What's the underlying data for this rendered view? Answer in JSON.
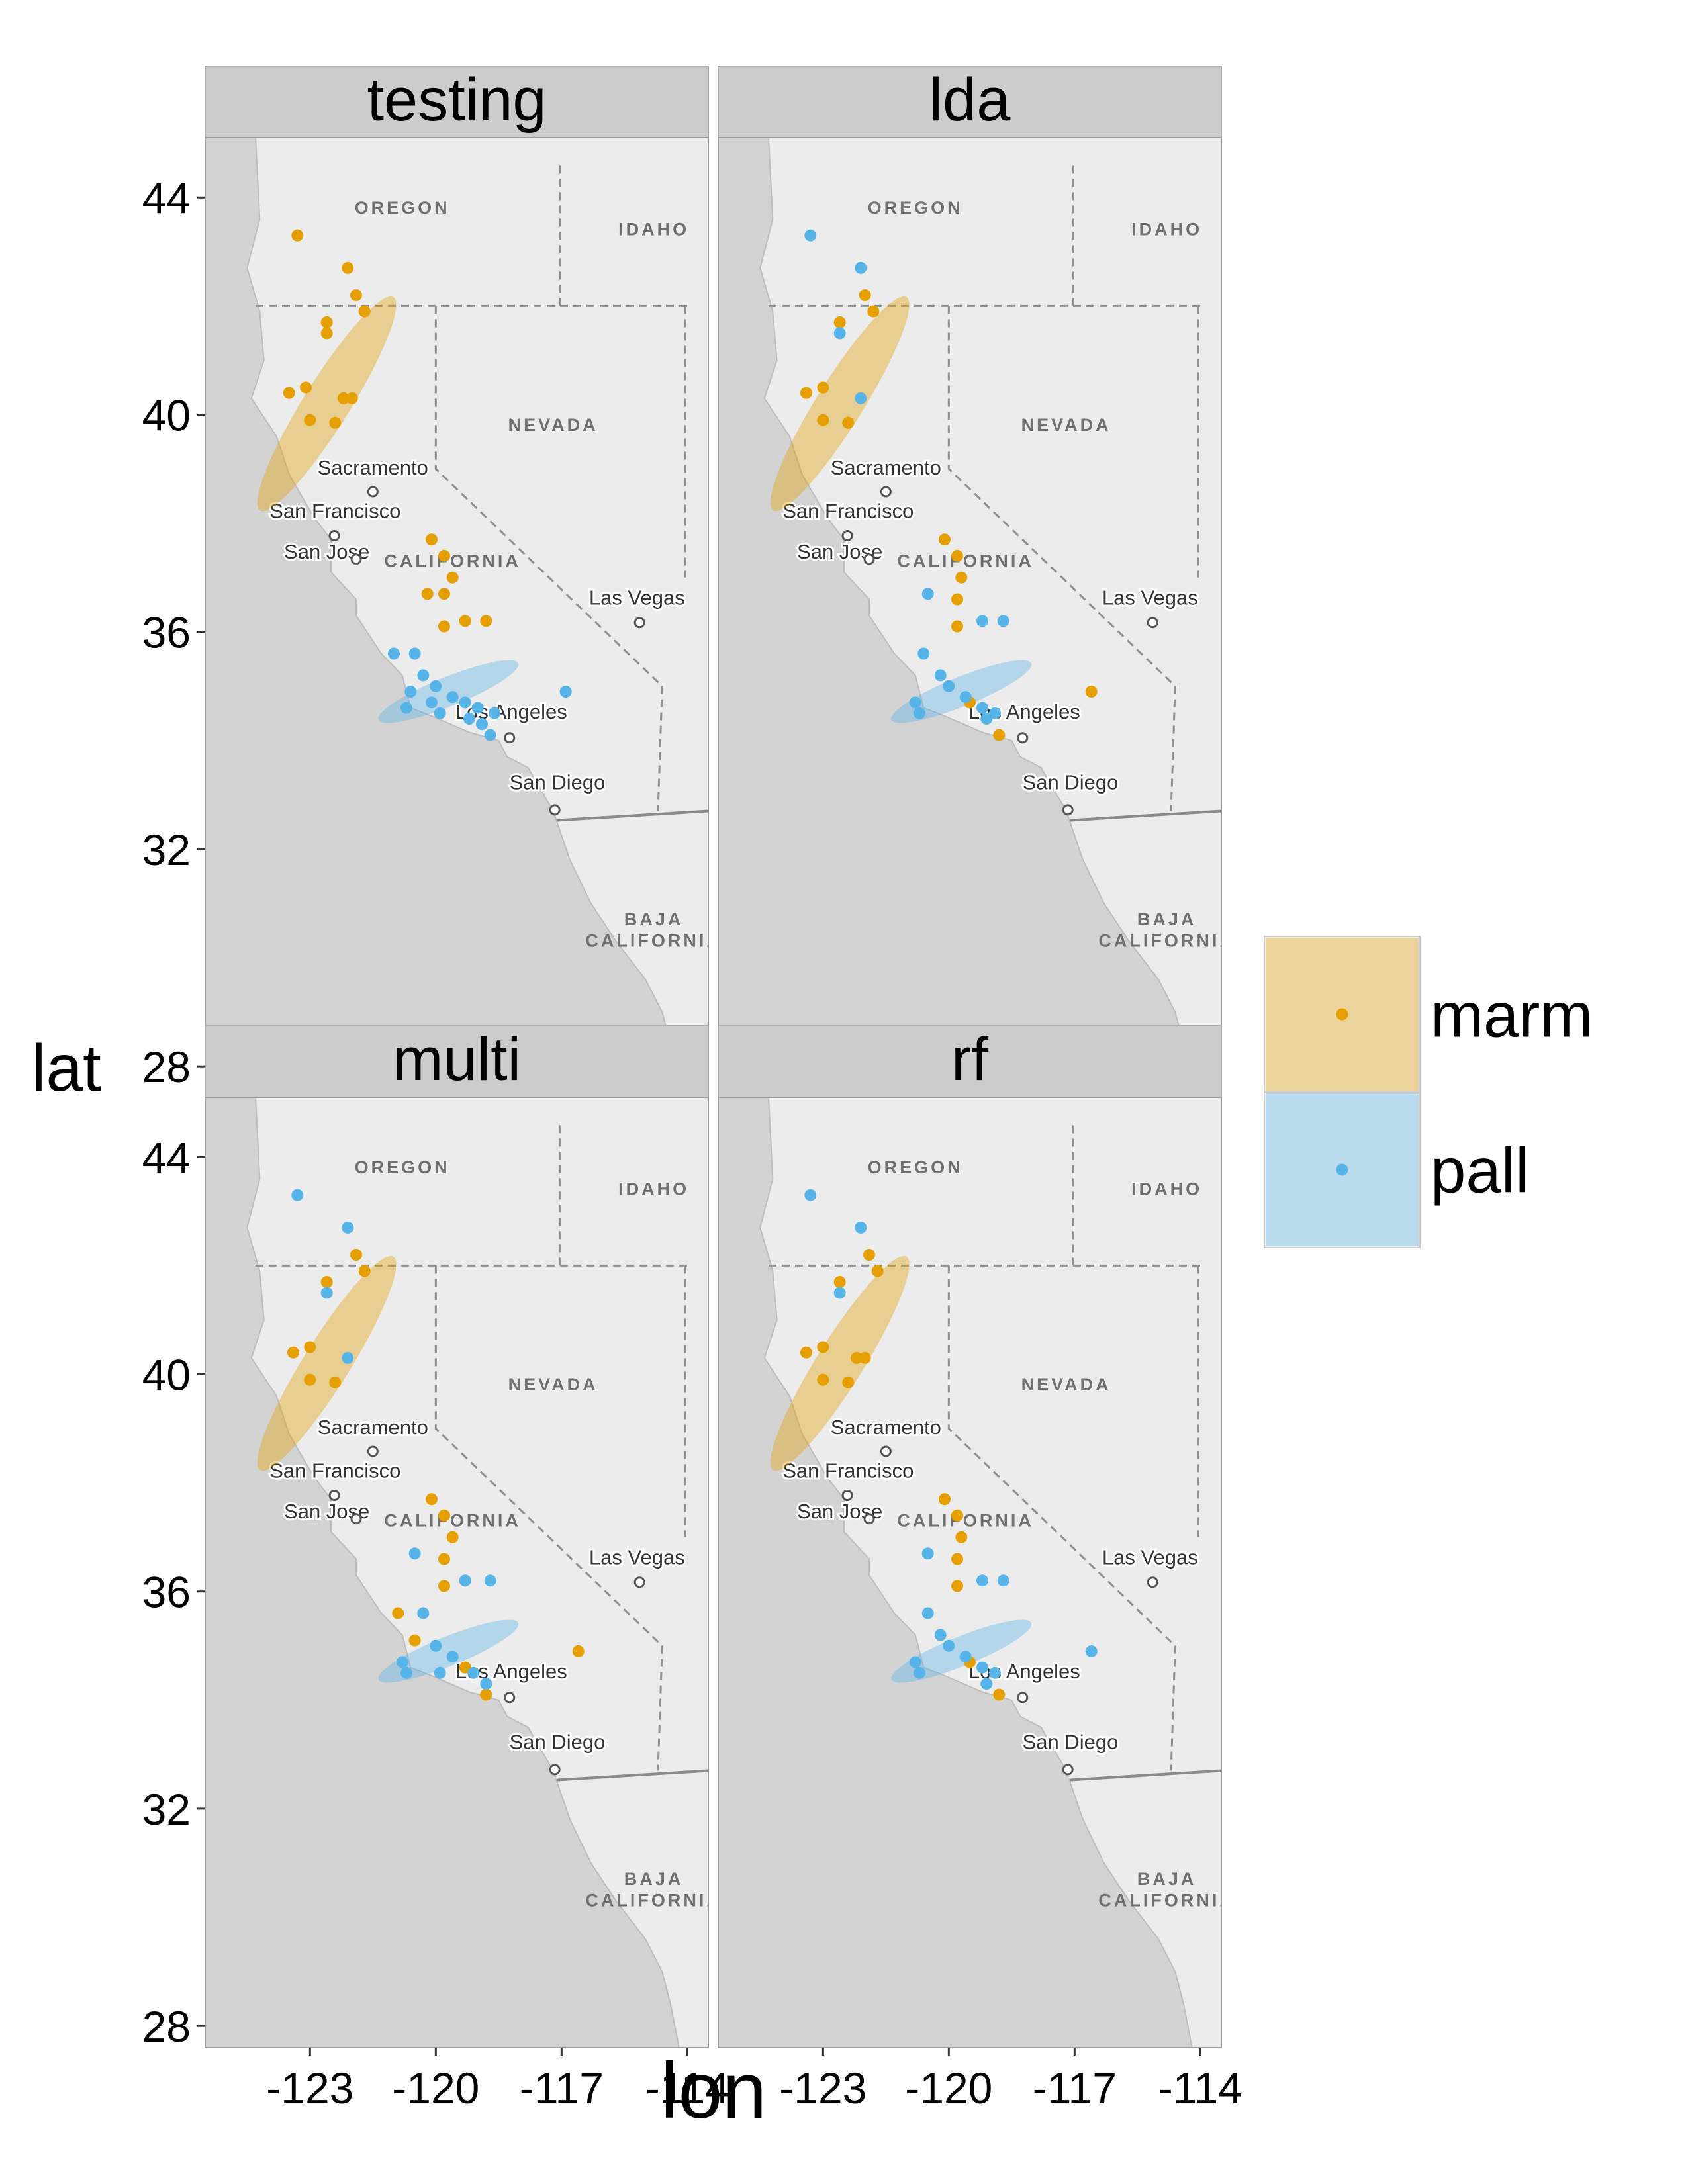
{
  "chart_data": {
    "type": "scatter",
    "panels": [
      {
        "title": "testing",
        "series": [
          {
            "name": "marm",
            "points": [
              [
                -123.3,
                43.3
              ],
              [
                -122.1,
                42.7
              ],
              [
                -121.9,
                42.2
              ],
              [
                -121.7,
                41.9
              ],
              [
                -122.6,
                41.7
              ],
              [
                -122.6,
                41.5
              ],
              [
                -123.5,
                40.4
              ],
              [
                -123.1,
                40.5
              ],
              [
                -122.2,
                40.3
              ],
              [
                -122.0,
                40.3
              ],
              [
                -123.0,
                39.9
              ],
              [
                -122.4,
                39.85
              ],
              [
                -120.1,
                37.7
              ],
              [
                -119.8,
                37.4
              ],
              [
                -119.6,
                37.0
              ],
              [
                -120.2,
                36.7
              ],
              [
                -119.8,
                36.7
              ],
              [
                -119.3,
                36.2
              ],
              [
                -118.8,
                36.2
              ],
              [
                -119.8,
                36.1
              ]
            ]
          },
          {
            "name": "pall",
            "points": [
              [
                -121.0,
                35.6
              ],
              [
                -120.5,
                35.6
              ],
              [
                -120.3,
                35.2
              ],
              [
                -120.0,
                35.0
              ],
              [
                -119.6,
                34.8
              ],
              [
                -119.3,
                34.7
              ],
              [
                -119.0,
                34.6
              ],
              [
                -118.6,
                34.5
              ],
              [
                -120.1,
                34.7
              ],
              [
                -120.6,
                34.9
              ],
              [
                -120.7,
                34.6
              ],
              [
                -119.9,
                34.5
              ],
              [
                -119.2,
                34.4
              ],
              [
                -118.9,
                34.3
              ],
              [
                -118.7,
                34.1
              ],
              [
                -116.9,
                34.9
              ]
            ]
          }
        ]
      },
      {
        "title": "lda",
        "series": [
          {
            "name": "marm",
            "points": [
              [
                -122.0,
                42.2
              ],
              [
                -121.8,
                41.9
              ],
              [
                -122.6,
                41.7
              ],
              [
                -123.4,
                40.4
              ],
              [
                -123.0,
                40.5
              ],
              [
                -123.0,
                39.9
              ],
              [
                -122.4,
                39.85
              ],
              [
                -120.1,
                37.7
              ],
              [
                -119.8,
                37.4
              ],
              [
                -119.7,
                37.0
              ],
              [
                -119.8,
                36.6
              ],
              [
                -119.8,
                36.1
              ],
              [
                -119.5,
                34.7
              ],
              [
                -118.8,
                34.1
              ],
              [
                -116.6,
                34.9
              ]
            ]
          },
          {
            "name": "pall",
            "points": [
              [
                -123.3,
                43.3
              ],
              [
                -122.1,
                42.7
              ],
              [
                -122.6,
                41.5
              ],
              [
                -122.1,
                40.3
              ],
              [
                -120.5,
                36.7
              ],
              [
                -119.2,
                36.2
              ],
              [
                -118.7,
                36.2
              ],
              [
                -120.6,
                35.6
              ],
              [
                -120.2,
                35.2
              ],
              [
                -120.0,
                35.0
              ],
              [
                -119.6,
                34.8
              ],
              [
                -119.2,
                34.6
              ],
              [
                -118.9,
                34.5
              ],
              [
                -120.8,
                34.7
              ],
              [
                -120.7,
                34.5
              ],
              [
                -119.1,
                34.4
              ]
            ]
          }
        ]
      },
      {
        "title": "multi",
        "series": [
          {
            "name": "marm",
            "points": [
              [
                -121.9,
                42.2
              ],
              [
                -121.7,
                41.9
              ],
              [
                -122.6,
                41.7
              ],
              [
                -123.4,
                40.4
              ],
              [
                -123.0,
                40.5
              ],
              [
                -123.0,
                39.9
              ],
              [
                -122.4,
                39.85
              ],
              [
                -120.1,
                37.7
              ],
              [
                -119.8,
                37.4
              ],
              [
                -119.6,
                37.0
              ],
              [
                -119.8,
                36.6
              ],
              [
                -119.8,
                36.1
              ],
              [
                -120.9,
                35.6
              ],
              [
                -120.5,
                35.1
              ],
              [
                -119.3,
                34.6
              ],
              [
                -118.8,
                34.1
              ],
              [
                -116.6,
                34.9
              ]
            ]
          },
          {
            "name": "pall",
            "points": [
              [
                -123.3,
                43.3
              ],
              [
                -122.1,
                42.7
              ],
              [
                -122.6,
                41.5
              ],
              [
                -122.1,
                40.3
              ],
              [
                -120.5,
                36.7
              ],
              [
                -119.3,
                36.2
              ],
              [
                -118.7,
                36.2
              ],
              [
                -120.3,
                35.6
              ],
              [
                -120.0,
                35.0
              ],
              [
                -119.6,
                34.8
              ],
              [
                -119.9,
                34.5
              ],
              [
                -119.1,
                34.5
              ],
              [
                -118.8,
                34.3
              ],
              [
                -120.8,
                34.7
              ],
              [
                -120.7,
                34.5
              ]
            ]
          }
        ]
      },
      {
        "title": "rf",
        "series": [
          {
            "name": "marm",
            "points": [
              [
                -121.9,
                42.2
              ],
              [
                -121.7,
                41.9
              ],
              [
                -122.6,
                41.7
              ],
              [
                -123.4,
                40.4
              ],
              [
                -123.0,
                40.5
              ],
              [
                -122.2,
                40.3
              ],
              [
                -122.0,
                40.3
              ],
              [
                -123.0,
                39.9
              ],
              [
                -122.4,
                39.85
              ],
              [
                -120.1,
                37.7
              ],
              [
                -119.8,
                37.4
              ],
              [
                -119.7,
                37.0
              ],
              [
                -119.8,
                36.6
              ],
              [
                -119.8,
                36.1
              ],
              [
                -119.5,
                34.7
              ],
              [
                -118.8,
                34.1
              ]
            ]
          },
          {
            "name": "pall",
            "points": [
              [
                -123.3,
                43.3
              ],
              [
                -122.1,
                42.7
              ],
              [
                -122.6,
                41.5
              ],
              [
                -120.5,
                36.7
              ],
              [
                -119.2,
                36.2
              ],
              [
                -118.7,
                36.2
              ],
              [
                -120.5,
                35.6
              ],
              [
                -120.2,
                35.2
              ],
              [
                -120.0,
                35.0
              ],
              [
                -119.6,
                34.8
              ],
              [
                -119.2,
                34.6
              ],
              [
                -118.9,
                34.5
              ],
              [
                -120.8,
                34.7
              ],
              [
                -120.7,
                34.5
              ],
              [
                -119.1,
                34.3
              ],
              [
                -116.6,
                34.9
              ]
            ]
          }
        ]
      }
    ],
    "ellipses": [
      {
        "series": "marm",
        "center": [
          -122.6,
          40.2
        ],
        "semi_major": 3.0,
        "semi_minor": 0.55,
        "rotation_deg": -58
      },
      {
        "series": "pall",
        "center": [
          -119.7,
          34.9
        ],
        "semi_major": 1.8,
        "semi_minor": 0.35,
        "rotation_deg": -22
      }
    ],
    "xlabel": "lon",
    "ylabel": "lat",
    "xticks": [
      "-123",
      "-120",
      "-117",
      "-114"
    ],
    "xtick_values": [
      -123,
      -120,
      -117,
      -114
    ],
    "yticks": [
      "28",
      "32",
      "36",
      "40",
      "44"
    ],
    "ytick_values": [
      28,
      32,
      36,
      40,
      44
    ],
    "xlim": [
      -125.5,
      -113.5
    ],
    "ylim": [
      27.6,
      45.1
    ],
    "legend": {
      "placement": "right",
      "entries": [
        "marm",
        "pall"
      ]
    },
    "colors": {
      "marm": "#E69F00",
      "pall": "#56B4E9",
      "strip_bg": "#cccccc",
      "panel_bg": "#d3d3d3"
    },
    "map_labels": [
      {
        "text": "OREGON",
        "lon": -120.8,
        "lat": 43.7,
        "kind": "region"
      },
      {
        "text": "IDAHO",
        "lon": -114.8,
        "lat": 43.3,
        "kind": "region"
      },
      {
        "text": "NEVADA",
        "lon": -117.2,
        "lat": 39.7,
        "kind": "region"
      },
      {
        "text": "CALIFORNIA",
        "lon": -119.6,
        "lat": 37.2,
        "kind": "region"
      },
      {
        "text": "BAJA",
        "lon": -114.8,
        "lat": 30.6,
        "kind": "region"
      },
      {
        "text": "CALIFORNIA",
        "lon": -114.8,
        "lat": 30.2,
        "kind": "region"
      },
      {
        "text": "Sacramento",
        "lon": -121.5,
        "lat": 38.9,
        "kind": "city"
      },
      {
        "text": "San Francisco",
        "lon": -122.4,
        "lat": 38.1,
        "kind": "city"
      },
      {
        "text": "San Jose",
        "lon": -122.6,
        "lat": 37.35,
        "kind": "city"
      },
      {
        "text": "Las Vegas",
        "lon": -115.2,
        "lat": 36.5,
        "kind": "city"
      },
      {
        "text": "Los Angeles",
        "lon": -118.2,
        "lat": 34.4,
        "kind": "city"
      },
      {
        "text": "San Diego",
        "lon": -117.1,
        "lat": 33.1,
        "kind": "city"
      }
    ]
  }
}
